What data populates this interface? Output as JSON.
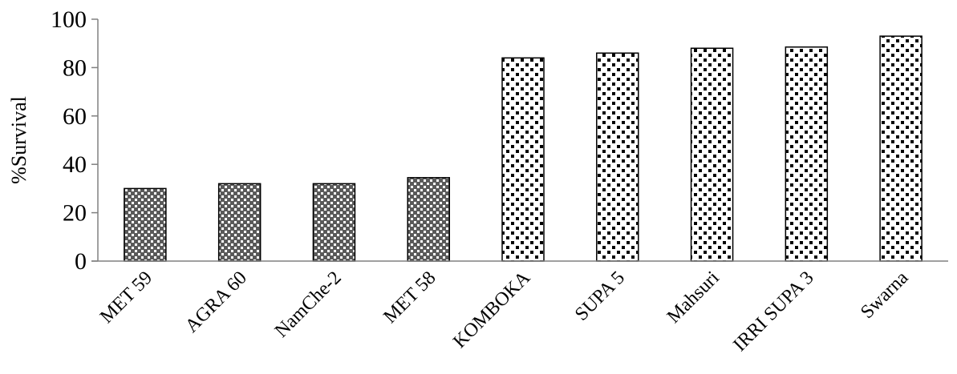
{
  "chart_data": {
    "type": "bar",
    "title": "",
    "xlabel": "",
    "ylabel": "%Survival",
    "ylim": [
      0,
      100
    ],
    "yticks": [
      "0",
      "20",
      "40",
      "60",
      "80",
      "100"
    ],
    "grid": false,
    "legend": "none",
    "categories": [
      "MET 59",
      "AGRA 60",
      "NamChe-2",
      "MET 58",
      "KOMBOKA",
      "SUPA 5",
      "Mahsuri",
      "IRRI SUPA 3",
      "Swarna"
    ],
    "values": [
      30,
      32,
      32,
      34.5,
      84,
      86,
      88,
      88.5,
      93
    ],
    "patterns": [
      "crosshatch",
      "crosshatch",
      "crosshatch",
      "crosshatch",
      "dotted",
      "dotted",
      "dotted",
      "dotted",
      "dotted"
    ],
    "colors": {
      "bar_stroke": "#000000",
      "crosshatch_fill": "#5a5a5a",
      "dotted_fill": "#ffffff",
      "pattern_ink": "#000000",
      "axis": "#808080"
    }
  }
}
